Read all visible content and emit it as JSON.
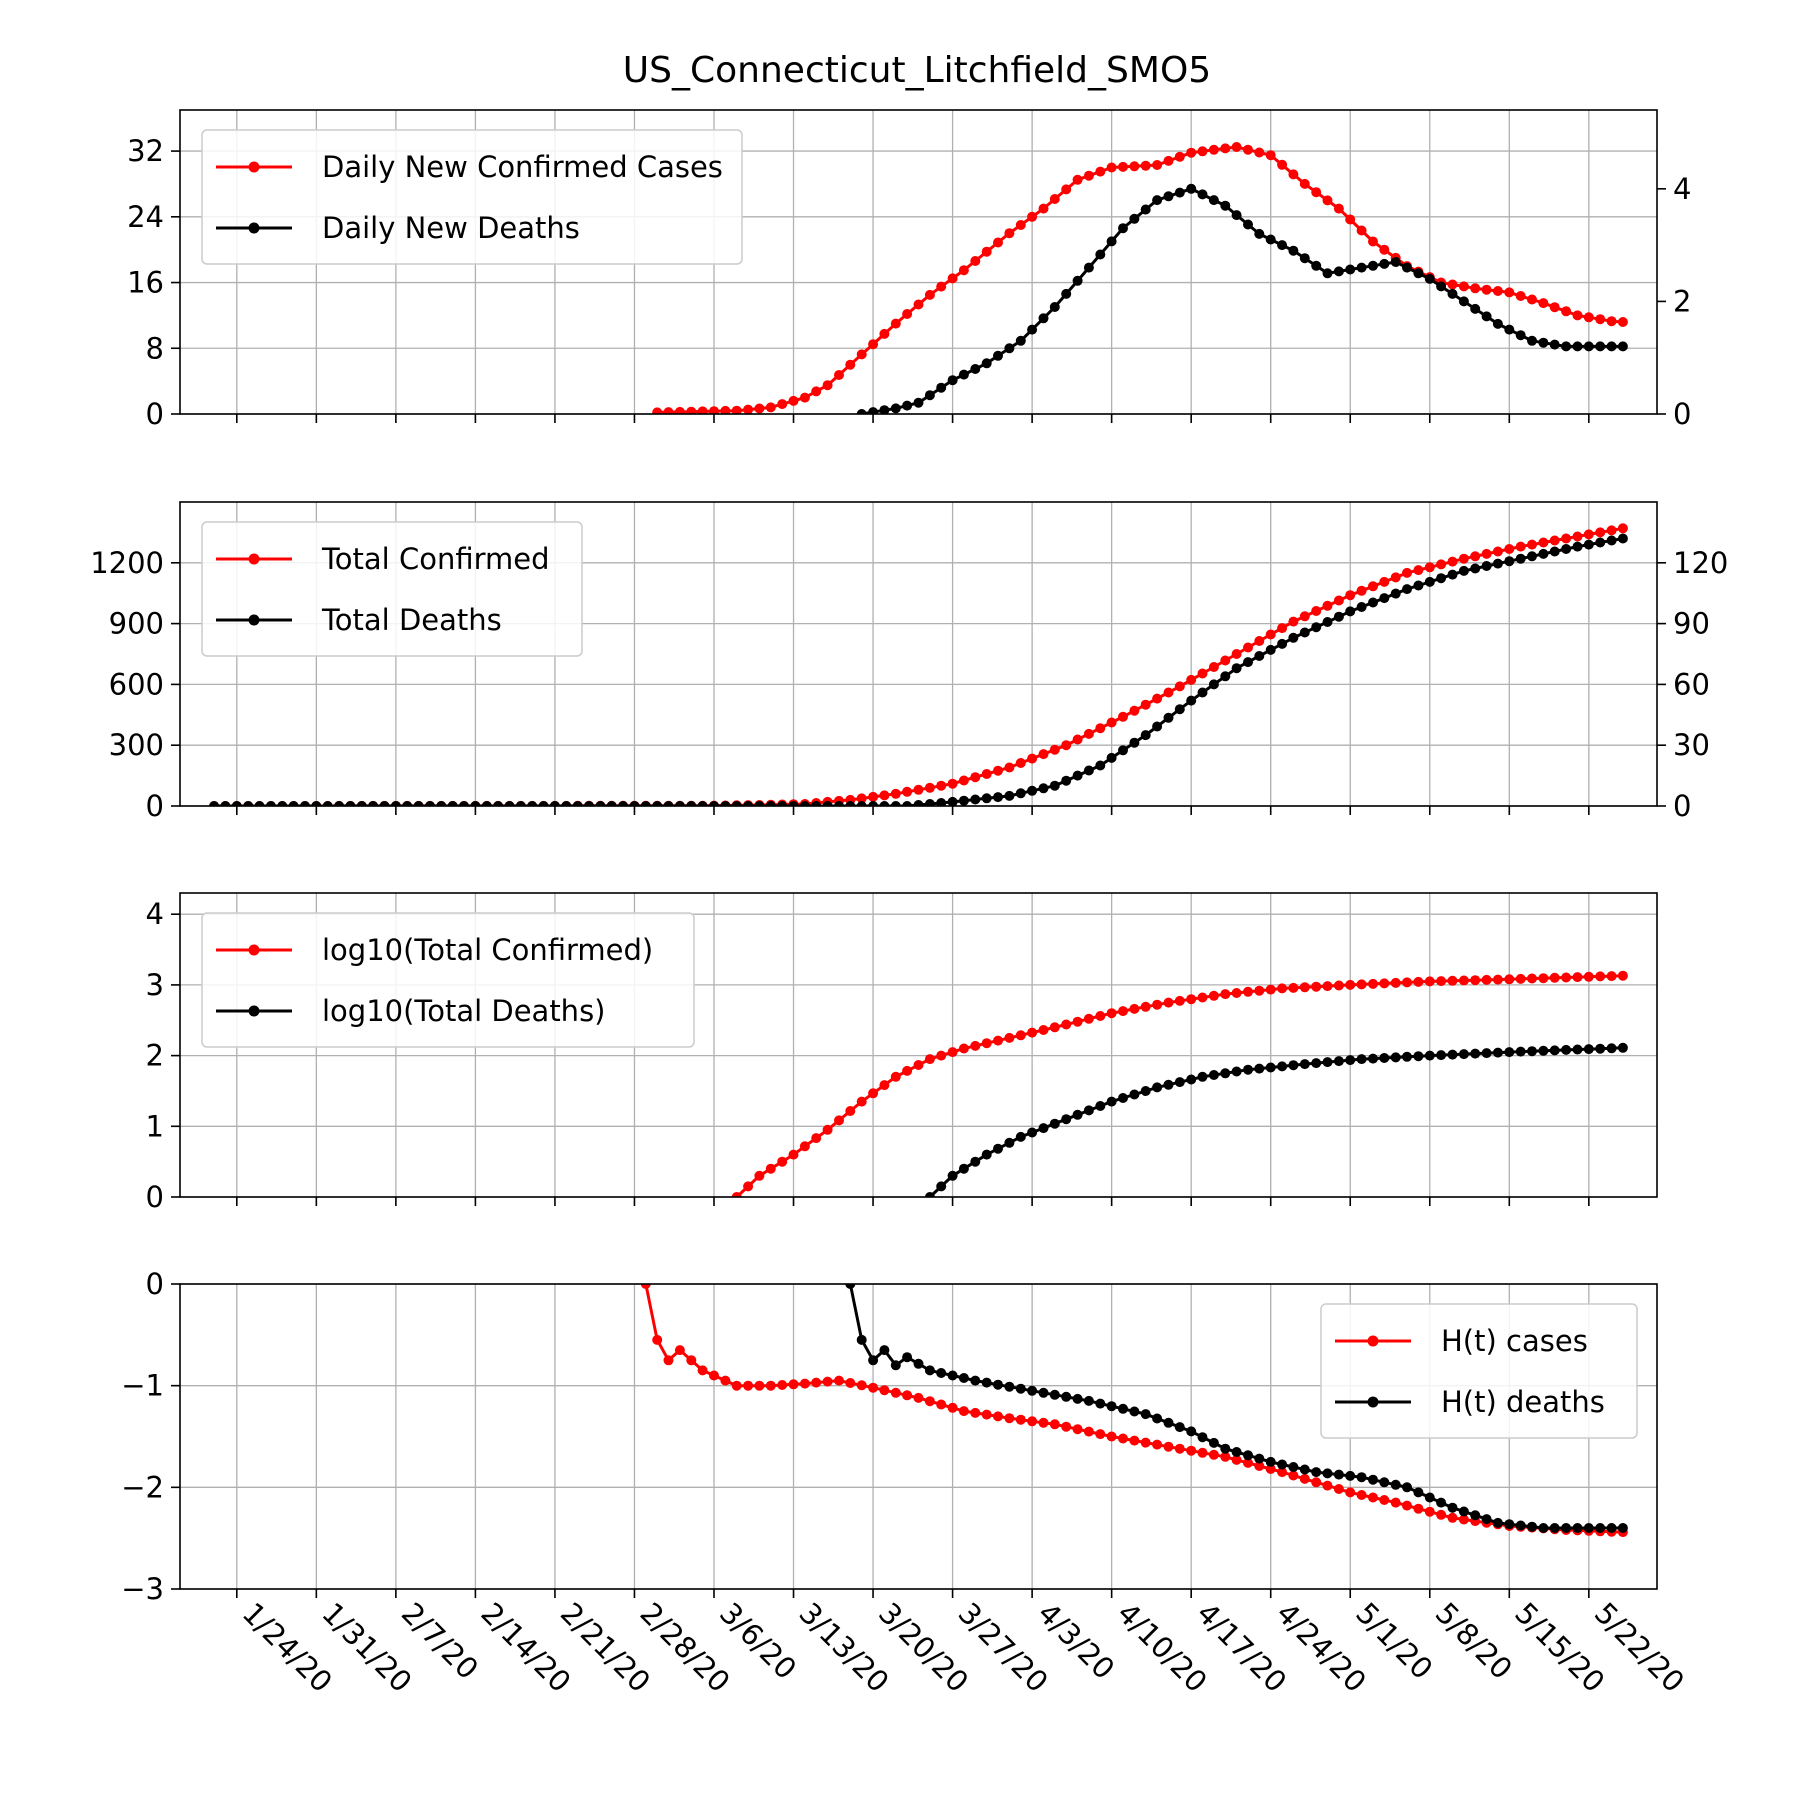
{
  "chart_data": {
    "type": "line",
    "title": "US_Connecticut_Litchfield_SMO5",
    "x_start": "1/22/20",
    "x_end": "5/25/20",
    "xticks": [
      "1/24/20",
      "1/31/20",
      "2/7/20",
      "2/14/20",
      "2/21/20",
      "2/28/20",
      "3/6/20",
      "3/13/20",
      "3/20/20",
      "3/27/20",
      "4/3/20",
      "4/10/20",
      "4/17/20",
      "4/24/20",
      "5/1/20",
      "5/8/20",
      "5/15/20",
      "5/22/20"
    ],
    "colors": {
      "cases": "#ff0000",
      "deaths": "#000000"
    },
    "panels": [
      {
        "id": "daily",
        "left_axis": {
          "ylim": [
            0,
            37
          ],
          "ticks": [
            "0",
            "8",
            "16",
            "24",
            "32"
          ]
        },
        "right_axis": {
          "ylim": [
            0,
            5.4
          ],
          "ticks": [
            "0",
            "2",
            "4"
          ]
        },
        "grid": true,
        "legend_position": "upper-left",
        "series": [
          {
            "name": "Daily New Confirmed Cases",
            "axis": "left",
            "color": "#ff0000",
            "points": [
              [
                "3/1/20",
                0.2
              ],
              [
                "3/8/20",
                0.4
              ],
              [
                "3/11/20",
                0.8
              ],
              [
                "3/14/20",
                2
              ],
              [
                "3/16/20",
                3.5
              ],
              [
                "3/18/20",
                6
              ],
              [
                "3/20/20",
                8.5
              ],
              [
                "3/22/20",
                11
              ],
              [
                "3/25/20",
                14.5
              ],
              [
                "3/28/20",
                17.5
              ],
              [
                "4/1/20",
                22
              ],
              [
                "4/4/20",
                25
              ],
              [
                "4/7/20",
                28.5
              ],
              [
                "4/10/20",
                30
              ],
              [
                "4/14/20",
                30.3
              ],
              [
                "4/17/20",
                31.8
              ],
              [
                "4/21/20",
                32.5
              ],
              [
                "4/24/20",
                31.5
              ],
              [
                "4/27/20",
                28
              ],
              [
                "4/30/20",
                25
              ],
              [
                "5/3/20",
                21
              ],
              [
                "5/6/20",
                18
              ],
              [
                "5/9/20",
                16
              ],
              [
                "5/12/20",
                15.3
              ],
              [
                "5/15/20",
                14.8
              ],
              [
                "5/18/20",
                13.5
              ],
              [
                "5/21/20",
                12
              ],
              [
                "5/24/20",
                11.3
              ],
              [
                "5/25/20",
                11.2
              ]
            ]
          },
          {
            "name": "Daily New Deaths",
            "axis": "right",
            "color": "#000000",
            "points": [
              [
                "3/19/20",
                0
              ],
              [
                "3/22/20",
                0.1
              ],
              [
                "3/24/20",
                0.2
              ],
              [
                "3/27/20",
                0.6
              ],
              [
                "3/30/20",
                0.9
              ],
              [
                "4/2/20",
                1.3
              ],
              [
                "4/5/20",
                1.9
              ],
              [
                "4/8/20",
                2.6
              ],
              [
                "4/11/20",
                3.3
              ],
              [
                "4/14/20",
                3.8
              ],
              [
                "4/17/20",
                4
              ],
              [
                "4/20/20",
                3.7
              ],
              [
                "4/23/20",
                3.2
              ],
              [
                "4/26/20",
                2.9
              ],
              [
                "4/29/20",
                2.5
              ],
              [
                "5/2/20",
                2.6
              ],
              [
                "5/5/20",
                2.7
              ],
              [
                "5/8/20",
                2.4
              ],
              [
                "5/11/20",
                2
              ],
              [
                "5/14/20",
                1.6
              ],
              [
                "5/17/20",
                1.3
              ],
              [
                "5/20/20",
                1.2
              ],
              [
                "5/23/20",
                1.2
              ],
              [
                "5/25/20",
                1.2
              ]
            ]
          }
        ]
      },
      {
        "id": "total",
        "left_axis": {
          "ylim": [
            0,
            1500
          ],
          "ticks": [
            "0",
            "300",
            "600",
            "900",
            "1200"
          ]
        },
        "right_axis": {
          "ylim": [
            0,
            150
          ],
          "ticks": [
            "0",
            "30",
            "60",
            "90",
            "120"
          ]
        },
        "grid": true,
        "legend_position": "upper-left",
        "series": [
          {
            "name": "Total Confirmed",
            "axis": "left",
            "color": "#ff0000",
            "points": [
              [
                "1/22/20",
                0
              ],
              [
                "3/5/20",
                1
              ],
              [
                "3/10/20",
                5
              ],
              [
                "3/14/20",
                10
              ],
              [
                "3/18/20",
                30
              ],
              [
                "3/22/20",
                60
              ],
              [
                "3/27/20",
                110
              ],
              [
                "4/1/20",
                190
              ],
              [
                "4/6/20",
                300
              ],
              [
                "4/11/20",
                440
              ],
              [
                "4/16/20",
                590
              ],
              [
                "4/21/20",
                750
              ],
              [
                "4/26/20",
                910
              ],
              [
                "5/1/20",
                1040
              ],
              [
                "5/6/20",
                1150
              ],
              [
                "5/11/20",
                1220
              ],
              [
                "5/16/20",
                1280
              ],
              [
                "5/21/20",
                1330
              ],
              [
                "5/25/20",
                1370
              ]
            ]
          },
          {
            "name": "Total Deaths",
            "axis": "right",
            "color": "#000000",
            "points": [
              [
                "1/22/20",
                0
              ],
              [
                "3/23/20",
                0
              ],
              [
                "3/27/20",
                2
              ],
              [
                "4/1/20",
                5
              ],
              [
                "4/5/20",
                10
              ],
              [
                "4/9/20",
                20
              ],
              [
                "4/13/20",
                35
              ],
              [
                "4/17/20",
                52
              ],
              [
                "4/21/20",
                68
              ],
              [
                "4/26/20",
                83
              ],
              [
                "5/1/20",
                96
              ],
              [
                "5/6/20",
                107
              ],
              [
                "5/11/20",
                116
              ],
              [
                "5/16/20",
                122
              ],
              [
                "5/21/20",
                128
              ],
              [
                "5/25/20",
                132
              ]
            ]
          }
        ]
      },
      {
        "id": "log",
        "left_axis": {
          "ylim": [
            0,
            4.3
          ],
          "ticks": [
            "0",
            "1",
            "2",
            "3",
            "4"
          ]
        },
        "grid": true,
        "legend_position": "upper-left",
        "series": [
          {
            "name": "log10(Total Confirmed)",
            "axis": "left",
            "color": "#ff0000",
            "points": [
              [
                "3/8/20",
                0
              ],
              [
                "3/10/20",
                0.3
              ],
              [
                "3/13/20",
                0.6
              ],
              [
                "3/16/20",
                0.95
              ],
              [
                "3/19/20",
                1.35
              ],
              [
                "3/22/20",
                1.7
              ],
              [
                "3/25/20",
                1.95
              ],
              [
                "3/28/20",
                2.1
              ],
              [
                "4/1/20",
                2.25
              ],
              [
                "4/5/20",
                2.4
              ],
              [
                "4/10/20",
                2.6
              ],
              [
                "4/15/20",
                2.75
              ],
              [
                "4/20/20",
                2.87
              ],
              [
                "4/25/20",
                2.95
              ],
              [
                "5/1/20",
                3
              ],
              [
                "5/8/20",
                3.05
              ],
              [
                "5/15/20",
                3.08
              ],
              [
                "5/25/20",
                3.13
              ]
            ]
          },
          {
            "name": "log10(Total Deaths)",
            "axis": "left",
            "color": "#000000",
            "points": [
              [
                "3/25/20",
                0
              ],
              [
                "3/27/20",
                0.3
              ],
              [
                "3/30/20",
                0.6
              ],
              [
                "4/2/20",
                0.85
              ],
              [
                "4/6/20",
                1.1
              ],
              [
                "4/10/20",
                1.35
              ],
              [
                "4/14/20",
                1.55
              ],
              [
                "4/18/20",
                1.7
              ],
              [
                "4/22/20",
                1.8
              ],
              [
                "4/27/20",
                1.88
              ],
              [
                "5/2/20",
                1.95
              ],
              [
                "5/8/20",
                2
              ],
              [
                "5/15/20",
                2.05
              ],
              [
                "5/25/20",
                2.11
              ]
            ]
          }
        ]
      },
      {
        "id": "hazard",
        "left_axis": {
          "ylim": [
            -3,
            0
          ],
          "ticks": [
            "−3",
            "−2",
            "−1",
            "0"
          ]
        },
        "grid": true,
        "legend_position": "upper-right",
        "series": [
          {
            "name": "H(t) cases",
            "axis": "left",
            "color": "#ff0000",
            "points": [
              [
                "2/29/20",
                0
              ],
              [
                "3/1/20",
                -0.55
              ],
              [
                "3/2/20",
                -0.75
              ],
              [
                "3/3/20",
                -0.65
              ],
              [
                "3/5/20",
                -0.85
              ],
              [
                "3/8/20",
                -1
              ],
              [
                "3/11/20",
                -1
              ],
              [
                "3/14/20",
                -0.98
              ],
              [
                "3/17/20",
                -0.95
              ],
              [
                "3/20/20",
                -1.02
              ],
              [
                "3/24/20",
                -1.12
              ],
              [
                "3/28/20",
                -1.25
              ],
              [
                "4/1/20",
                -1.32
              ],
              [
                "4/5/20",
                -1.38
              ],
              [
                "4/10/20",
                -1.5
              ],
              [
                "4/15/20",
                -1.6
              ],
              [
                "4/20/20",
                -1.7
              ],
              [
                "4/25/20",
                -1.85
              ],
              [
                "5/1/20",
                -2.05
              ],
              [
                "5/5/20",
                -2.15
              ],
              [
                "5/10/20",
                -2.3
              ],
              [
                "5/15/20",
                -2.38
              ],
              [
                "5/20/20",
                -2.42
              ],
              [
                "5/25/20",
                -2.44
              ]
            ]
          },
          {
            "name": "H(t) deaths",
            "axis": "left",
            "color": "#000000",
            "points": [
              [
                "3/18/20",
                0
              ],
              [
                "3/19/20",
                -0.55
              ],
              [
                "3/20/20",
                -0.75
              ],
              [
                "3/21/20",
                -0.65
              ],
              [
                "3/22/20",
                -0.8
              ],
              [
                "3/23/20",
                -0.72
              ],
              [
                "3/25/20",
                -0.85
              ],
              [
                "3/29/20",
                -0.95
              ],
              [
                "4/3/20",
                -1.05
              ],
              [
                "4/8/20",
                -1.15
              ],
              [
                "4/13/20",
                -1.28
              ],
              [
                "4/17/20",
                -1.45
              ],
              [
                "4/20/20",
                -1.62
              ],
              [
                "4/24/20",
                -1.75
              ],
              [
                "4/28/20",
                -1.85
              ],
              [
                "5/2/20",
                -1.9
              ],
              [
                "5/6/20",
                -2
              ],
              [
                "5/10/20",
                -2.2
              ],
              [
                "5/14/20",
                -2.35
              ],
              [
                "5/18/20",
                -2.4
              ],
              [
                "5/25/20",
                -2.4
              ]
            ]
          }
        ]
      }
    ]
  }
}
